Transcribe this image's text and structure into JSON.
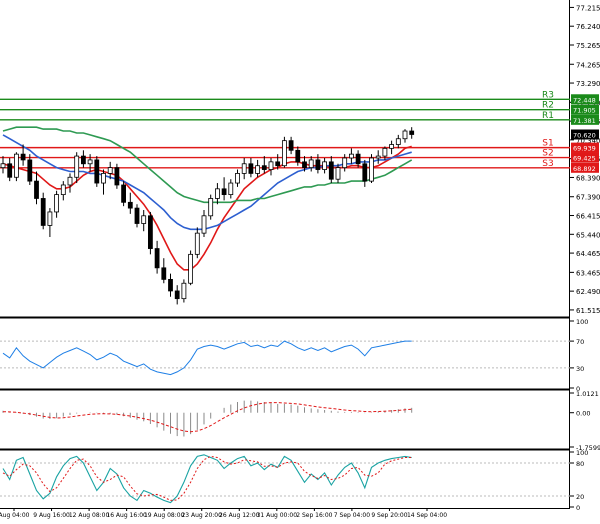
{
  "chart_data": {
    "type": "candlestick",
    "price_axis": {
      "ylim": [
        61.2,
        77.6
      ],
      "ticks": [
        "77.215",
        "76.240",
        "75.265",
        "74.265",
        "73.290",
        "72.290",
        "71.315",
        "70.340",
        "69.365",
        "68.390",
        "67.390",
        "66.415",
        "65.440",
        "64.465",
        "63.465",
        "62.490",
        "61.515"
      ]
    },
    "levels": [
      {
        "name": "R3",
        "value": 72.448,
        "label": "72.448",
        "color": "#1a8a1a"
      },
      {
        "name": "R2",
        "value": 71.905,
        "label": "71.905",
        "color": "#1a8a1a"
      },
      {
        "name": "R1",
        "value": 71.381,
        "label": "71.381",
        "color": "#1a8a1a"
      },
      {
        "name": "S1",
        "value": 69.939,
        "label": "69.939",
        "color": "#e01818"
      },
      {
        "name": "S2",
        "value": 69.425,
        "label": "69.425",
        "color": "#e01818"
      },
      {
        "name": "S3",
        "value": 68.892,
        "label": "68.892",
        "color": "#e01818"
      }
    ],
    "last_price": {
      "value": 70.62,
      "label": "70.620"
    },
    "series": [
      {
        "kind": "candles",
        "values": [
          [
            68.9,
            69.5,
            68.6,
            69.1
          ],
          [
            69.1,
            69.4,
            68.2,
            68.4
          ],
          [
            68.4,
            69.7,
            68.2,
            69.6
          ],
          [
            69.6,
            70.1,
            69.0,
            69.3
          ],
          [
            69.3,
            69.6,
            68.0,
            68.2
          ],
          [
            68.2,
            68.7,
            67.0,
            67.3
          ],
          [
            67.3,
            67.6,
            65.7,
            65.9
          ],
          [
            65.9,
            66.8,
            65.3,
            66.6
          ],
          [
            66.6,
            67.7,
            66.3,
            67.5
          ],
          [
            67.5,
            68.2,
            67.2,
            68.0
          ],
          [
            68.0,
            68.6,
            67.6,
            68.4
          ],
          [
            68.4,
            69.7,
            68.1,
            69.5
          ],
          [
            69.5,
            69.8,
            68.9,
            69.1
          ],
          [
            69.1,
            69.6,
            68.7,
            69.3
          ],
          [
            69.3,
            69.5,
            67.9,
            68.1
          ],
          [
            68.1,
            68.8,
            67.5,
            68.6
          ],
          [
            68.6,
            69.2,
            68.3,
            68.9
          ],
          [
            68.9,
            69.1,
            67.8,
            68.0
          ],
          [
            68.0,
            68.2,
            66.9,
            67.1
          ],
          [
            67.1,
            67.6,
            66.5,
            66.8
          ],
          [
            66.8,
            67.0,
            65.8,
            66.0
          ],
          [
            66.0,
            66.7,
            65.6,
            66.4
          ],
          [
            66.4,
            66.6,
            64.4,
            64.7
          ],
          [
            64.7,
            65.1,
            63.4,
            63.7
          ],
          [
            63.7,
            64.2,
            62.9,
            63.1
          ],
          [
            63.1,
            63.4,
            62.2,
            62.5
          ],
          [
            62.5,
            62.8,
            61.8,
            62.1
          ],
          [
            62.1,
            63.1,
            61.9,
            62.9
          ],
          [
            62.9,
            64.6,
            62.8,
            64.4
          ],
          [
            64.4,
            65.8,
            64.2,
            65.5
          ],
          [
            65.5,
            66.7,
            65.3,
            66.4
          ],
          [
            66.4,
            67.5,
            66.2,
            67.3
          ],
          [
            67.3,
            68.1,
            67.0,
            67.8
          ],
          [
            67.8,
            68.4,
            67.2,
            67.5
          ],
          [
            67.5,
            68.3,
            67.3,
            68.1
          ],
          [
            68.1,
            68.8,
            67.9,
            68.6
          ],
          [
            68.6,
            69.4,
            68.3,
            69.1
          ],
          [
            69.1,
            69.4,
            68.4,
            68.6
          ],
          [
            68.6,
            69.3,
            68.4,
            69.0
          ],
          [
            69.0,
            69.5,
            68.6,
            68.8
          ],
          [
            68.8,
            69.4,
            68.5,
            69.2
          ],
          [
            69.2,
            69.6,
            68.8,
            69.0
          ],
          [
            69.0,
            70.5,
            68.9,
            70.3
          ],
          [
            70.3,
            70.5,
            69.6,
            69.8
          ],
          [
            69.8,
            70.0,
            69.0,
            69.2
          ],
          [
            69.2,
            69.5,
            68.7,
            68.9
          ],
          [
            68.9,
            69.5,
            68.7,
            69.3
          ],
          [
            69.3,
            69.6,
            68.6,
            68.8
          ],
          [
            68.8,
            69.4,
            68.6,
            69.2
          ],
          [
            69.2,
            69.5,
            68.1,
            68.3
          ],
          [
            68.3,
            69.1,
            68.1,
            68.9
          ],
          [
            68.9,
            69.6,
            68.7,
            69.4
          ],
          [
            69.4,
            69.9,
            69.1,
            69.6
          ],
          [
            69.6,
            69.8,
            68.9,
            69.1
          ],
          [
            69.1,
            69.3,
            67.9,
            68.2
          ],
          [
            68.2,
            69.6,
            68.1,
            69.4
          ],
          [
            69.4,
            69.8,
            69.1,
            69.5
          ],
          [
            69.5,
            70.0,
            69.3,
            69.9
          ],
          [
            69.9,
            70.3,
            69.6,
            70.1
          ],
          [
            70.1,
            70.6,
            69.9,
            70.4
          ],
          [
            70.4,
            70.9,
            70.2,
            70.8
          ],
          [
            70.8,
            71.0,
            70.4,
            70.62
          ]
        ]
      },
      {
        "name": "",
        "kind": "ma",
        "color": "#e01818",
        "values": [
          69.1,
          69.0,
          68.9,
          68.8,
          68.7,
          68.6,
          68.3,
          68.0,
          67.8,
          67.8,
          67.9,
          68.2,
          68.5,
          68.7,
          68.8,
          68.7,
          68.6,
          68.5,
          68.2,
          67.8,
          67.4,
          67.0,
          66.5,
          65.9,
          65.2,
          64.5,
          63.9,
          63.6,
          63.6,
          63.9,
          64.4,
          65.0,
          65.7,
          66.3,
          66.8,
          67.3,
          67.8,
          68.1,
          68.4,
          68.6,
          68.8,
          68.9,
          69.1,
          69.2,
          69.2,
          69.1,
          69.0,
          69.0,
          69.0,
          68.9,
          68.9,
          68.9,
          69.0,
          69.0,
          68.9,
          68.9,
          69.0,
          69.2,
          69.4,
          69.6,
          69.9,
          70.0
        ]
      },
      {
        "name": "",
        "kind": "ma",
        "color": "#2d5fd0",
        "values": [
          70.6,
          70.4,
          70.2,
          70.0,
          69.8,
          69.5,
          69.3,
          69.1,
          68.9,
          68.8,
          68.7,
          68.7,
          68.7,
          68.6,
          68.6,
          68.5,
          68.4,
          68.3,
          68.2,
          68.0,
          67.8,
          67.6,
          67.3,
          67.0,
          66.7,
          66.3,
          66.0,
          65.8,
          65.7,
          65.7,
          65.7,
          65.8,
          65.9,
          66.1,
          66.3,
          66.5,
          66.7,
          66.9,
          67.2,
          67.5,
          67.8,
          68.1,
          68.3,
          68.5,
          68.7,
          68.8,
          68.9,
          68.9,
          69.0,
          69.0,
          69.0,
          69.1,
          69.1,
          69.2,
          69.2,
          69.2,
          69.3,
          69.3,
          69.4,
          69.5,
          69.6,
          69.7
        ]
      },
      {
        "name": "",
        "kind": "ma",
        "color": "#2e9a52",
        "values": [
          70.8,
          70.9,
          71.0,
          71.0,
          71.0,
          71.0,
          70.9,
          70.9,
          70.9,
          70.8,
          70.8,
          70.7,
          70.7,
          70.6,
          70.5,
          70.4,
          70.3,
          70.1,
          69.9,
          69.7,
          69.4,
          69.1,
          68.8,
          68.5,
          68.2,
          67.9,
          67.6,
          67.4,
          67.3,
          67.2,
          67.1,
          67.1,
          67.1,
          67.1,
          67.1,
          67.2,
          67.2,
          67.2,
          67.3,
          67.3,
          67.4,
          67.5,
          67.6,
          67.7,
          67.8,
          67.9,
          67.9,
          68.0,
          68.0,
          68.1,
          68.1,
          68.1,
          68.2,
          68.2,
          68.2,
          68.3,
          68.4,
          68.5,
          68.7,
          68.9,
          69.1,
          69.3
        ]
      }
    ],
    "x_tick_labels": [
      "Aug 04:00",
      "9 Aug 16:00",
      "12 Aug 08:00",
      "16 Aug 16:00",
      "19 Aug 08:00",
      "23 Aug 20:00",
      "26 Aug 12:00",
      "31 Aug 00:00",
      "2 Sep 16:00",
      "7 Sep 04:00",
      "9 Sep 20:00",
      "14 Sep 04:00"
    ],
    "indicators": [
      {
        "panel": "rsi",
        "ylim": [
          0,
          100
        ],
        "ticks": [
          "100",
          "70",
          "30",
          "0"
        ],
        "color": "#1e7fe6",
        "values": [
          52,
          45,
          60,
          48,
          40,
          35,
          30,
          38,
          46,
          52,
          56,
          60,
          55,
          50,
          42,
          46,
          52,
          48,
          40,
          36,
          32,
          36,
          28,
          24,
          22,
          20,
          24,
          30,
          42,
          58,
          62,
          64,
          62,
          58,
          62,
          66,
          68,
          62,
          64,
          60,
          64,
          62,
          70,
          66,
          60,
          56,
          60,
          56,
          60,
          54,
          58,
          62,
          64,
          58,
          48,
          60,
          62,
          64,
          66,
          68,
          70,
          70
        ]
      },
      {
        "panel": "macd",
        "ylim": [
          -1.7599,
          1.0121
        ],
        "ticks": [
          "1.0121",
          "0.00",
          "-1.7599"
        ],
        "signal_color": "#e01818",
        "hist_color": "#8a8a8a",
        "hist": [
          0.1,
          0.05,
          0.02,
          -0.05,
          -0.12,
          -0.2,
          -0.3,
          -0.32,
          -0.28,
          -0.2,
          -0.12,
          -0.04,
          0.0,
          0.02,
          -0.02,
          -0.05,
          -0.06,
          -0.1,
          -0.18,
          -0.26,
          -0.36,
          -0.44,
          -0.58,
          -0.75,
          -0.92,
          -1.08,
          -1.2,
          -1.22,
          -1.1,
          -0.88,
          -0.6,
          -0.3,
          0.0,
          0.25,
          0.42,
          0.55,
          0.62,
          0.62,
          0.58,
          0.55,
          0.5,
          0.45,
          0.45,
          0.42,
          0.36,
          0.28,
          0.22,
          0.18,
          0.14,
          0.1,
          0.06,
          0.04,
          0.04,
          0.03,
          -0.02,
          0.02,
          0.06,
          0.1,
          0.14,
          0.18,
          0.22,
          0.25
        ],
        "signal": [
          0.05,
          0.04,
          0.02,
          -0.02,
          -0.06,
          -0.12,
          -0.18,
          -0.24,
          -0.27,
          -0.26,
          -0.22,
          -0.17,
          -0.12,
          -0.08,
          -0.06,
          -0.05,
          -0.06,
          -0.08,
          -0.12,
          -0.17,
          -0.23,
          -0.3,
          -0.38,
          -0.48,
          -0.6,
          -0.72,
          -0.84,
          -0.94,
          -0.98,
          -0.94,
          -0.82,
          -0.66,
          -0.46,
          -0.26,
          -0.08,
          0.1,
          0.24,
          0.36,
          0.44,
          0.5,
          0.52,
          0.52,
          0.5,
          0.48,
          0.45,
          0.4,
          0.35,
          0.3,
          0.26,
          0.22,
          0.18,
          0.14,
          0.11,
          0.09,
          0.06,
          0.05,
          0.06,
          0.08,
          0.1,
          0.12,
          0.15,
          0.18
        ]
      },
      {
        "panel": "stochastic",
        "ylim": [
          0,
          100
        ],
        "ticks": [
          "100",
          "80",
          "20",
          "0"
        ],
        "k_color": "#1aa3a3",
        "d_color": "#e01818",
        "k": [
          70,
          50,
          85,
          90,
          60,
          30,
          15,
          25,
          55,
          75,
          88,
          92,
          80,
          55,
          30,
          45,
          70,
          60,
          35,
          20,
          12,
          30,
          25,
          18,
          12,
          8,
          20,
          45,
          75,
          92,
          95,
          90,
          85,
          70,
          80,
          88,
          92,
          75,
          80,
          68,
          78,
          72,
          92,
          85,
          65,
          45,
          60,
          50,
          62,
          40,
          58,
          72,
          80,
          62,
          35,
          72,
          80,
          85,
          88,
          90,
          92,
          90
        ],
        "d": [
          62,
          56,
          68,
          78,
          75,
          62,
          42,
          28,
          35,
          52,
          70,
          85,
          87,
          75,
          55,
          45,
          50,
          58,
          55,
          38,
          24,
          20,
          22,
          23,
          18,
          12,
          13,
          25,
          45,
          70,
          86,
          92,
          90,
          82,
          78,
          80,
          86,
          84,
          82,
          74,
          75,
          72,
          80,
          82,
          80,
          65,
          57,
          52,
          57,
          50,
          52,
          58,
          70,
          72,
          58,
          56,
          62,
          78,
          84,
          87,
          90,
          90
        ]
      }
    ]
  }
}
